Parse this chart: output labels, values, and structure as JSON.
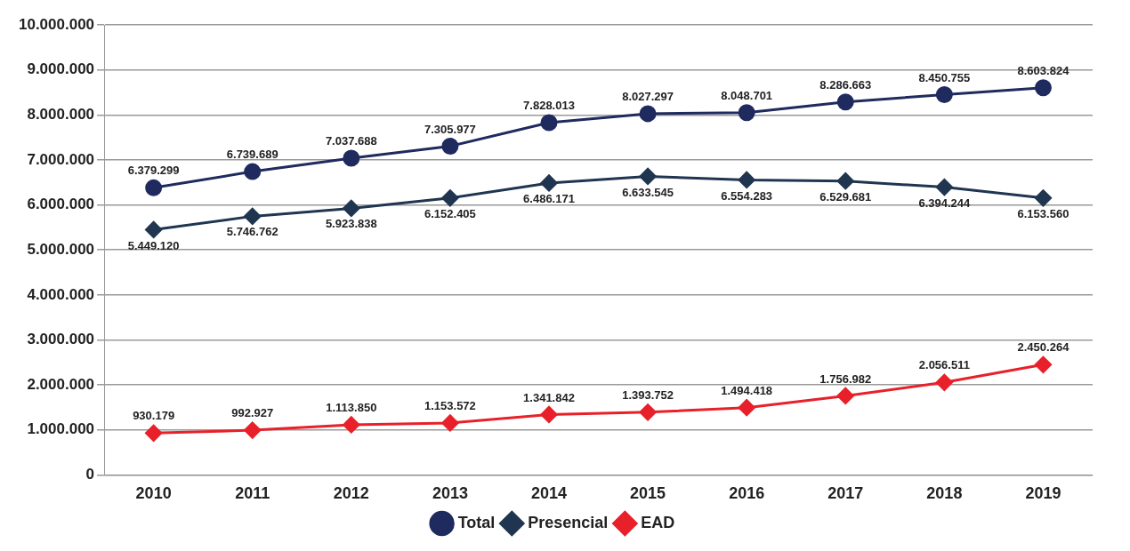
{
  "chart_data": {
    "type": "line",
    "categories": [
      "2010",
      "2011",
      "2012",
      "2013",
      "2014",
      "2015",
      "2016",
      "2017",
      "2018",
      "2019"
    ],
    "series": [
      {
        "name": "Total",
        "color": "#1f2a5e",
        "marker": "circle",
        "values": [
          6379299,
          6739689,
          7037688,
          7305977,
          7828013,
          8027297,
          8048701,
          8286663,
          8450755,
          8603824
        ],
        "value_labels": [
          "6.379.299",
          "6.739.689",
          "7.037.688",
          "7.305.977",
          "7.828.013",
          "8.027.297",
          "8.048.701",
          "8.286.663",
          "8.450.755",
          "8.603.824"
        ]
      },
      {
        "name": "Presencial",
        "color": "#1f3550",
        "marker": "diamond",
        "values": [
          5449120,
          5746762,
          5923838,
          6152405,
          6486171,
          6633545,
          6554283,
          6529681,
          6394244,
          6153560
        ],
        "value_labels": [
          "5.449.120",
          "5.746.762",
          "5.923.838",
          "6.152.405",
          "6.486.171",
          "6.633.545",
          "6.554.283",
          "6.529.681",
          "6.394.244",
          "6.153.560"
        ]
      },
      {
        "name": "EAD",
        "color": "#e8202a",
        "marker": "diamond",
        "values": [
          930179,
          992927,
          1113850,
          1153572,
          1341842,
          1393752,
          1494418,
          1756982,
          2056511,
          2450264
        ],
        "value_labels": [
          "930.179",
          "992.927",
          "1.113.850",
          "1.153.572",
          "1.341.842",
          "1.393.752",
          "1.494.418",
          "1.756.982",
          "2.056.511",
          "2.450.264"
        ]
      }
    ],
    "ylim": [
      0,
      10000000
    ],
    "yticks": [
      {
        "value": 0,
        "label": "0"
      },
      {
        "value": 1000000,
        "label": "1.000.000"
      },
      {
        "value": 2000000,
        "label": "2.000.000"
      },
      {
        "value": 3000000,
        "label": "3.000.000"
      },
      {
        "value": 4000000,
        "label": "4.000.000"
      },
      {
        "value": 5000000,
        "label": "5.000.000"
      },
      {
        "value": 6000000,
        "label": "6.000.000"
      },
      {
        "value": 7000000,
        "label": "7.000.000"
      },
      {
        "value": 8000000,
        "label": "8.000.000"
      },
      {
        "value": 9000000,
        "label": "9.000.000"
      },
      {
        "value": 10000000,
        "label": "10.000.000"
      }
    ],
    "grid": "y",
    "legend": "bottom",
    "line_style": "solid"
  }
}
